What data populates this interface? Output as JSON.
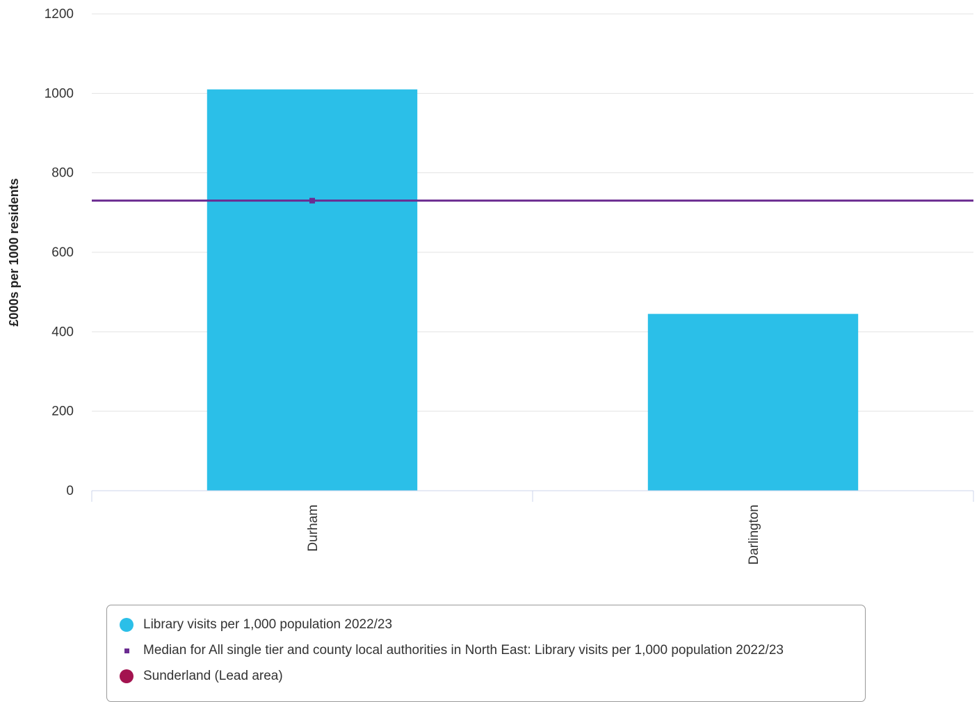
{
  "chart_data": {
    "type": "bar",
    "title": "",
    "xlabel": "",
    "ylabel": "£000s per 1000 residents",
    "ylim": [
      0,
      1200
    ],
    "yticks": [
      0,
      200,
      400,
      600,
      800,
      1000,
      1200
    ],
    "categories": [
      "Durham",
      "Darlington"
    ],
    "series": [
      {
        "name": "Library visits per 1,000 population 2022/23",
        "values": [
          1010,
          445
        ],
        "color": "#2bbfe8"
      }
    ],
    "reference_line": {
      "name": "Median for All single tier and county local authorities in North East: Library visits per 1,000 population 2022/23",
      "value": 730,
      "color": "#6b2c91"
    },
    "grid": true,
    "legend_position": "bottom"
  },
  "legend": {
    "items": [
      {
        "label": "Library visits per 1,000 population 2022/23",
        "color": "#2bbfe8",
        "shape": "circle"
      },
      {
        "label": "Median for All single tier and county local authorities in North East: Library visits per 1,000 population 2022/23",
        "color": "#6b2c91",
        "shape": "square"
      },
      {
        "label": "Sunderland (Lead area)",
        "color": "#a3134f",
        "shape": "circle"
      }
    ]
  }
}
